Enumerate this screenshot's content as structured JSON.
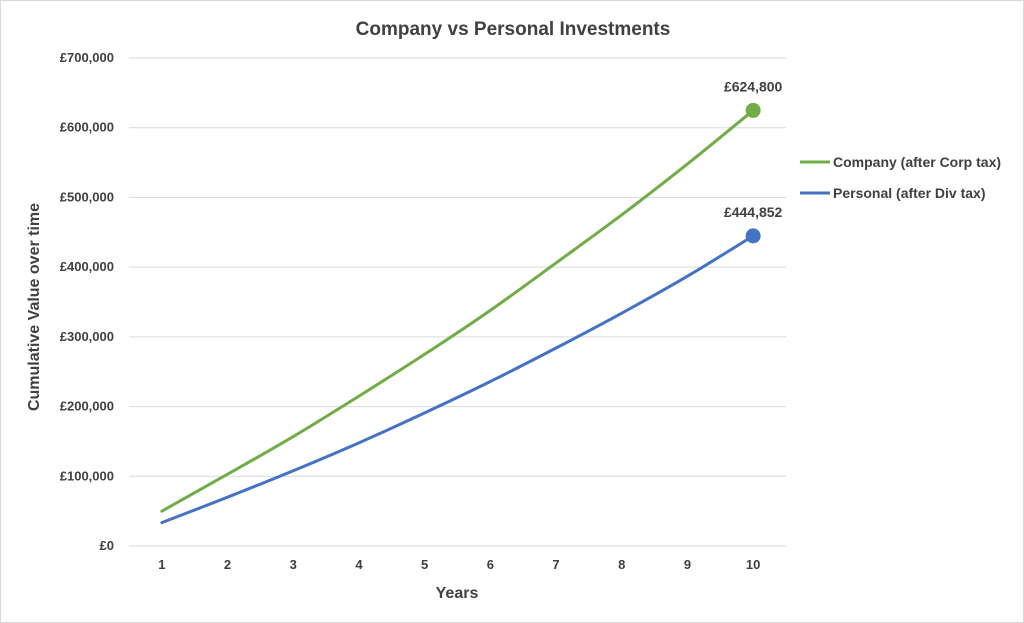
{
  "chart_data": {
    "type": "line",
    "title": "Company vs Personal Investments",
    "xlabel": "Years",
    "ylabel": "Cumulative Value over time",
    "categories": [
      "1",
      "2",
      "3",
      "4",
      "5",
      "6",
      "7",
      "8",
      "9",
      "10"
    ],
    "ylim": [
      0,
      700000
    ],
    "yticks": [
      0,
      100000,
      200000,
      300000,
      400000,
      500000,
      600000,
      700000
    ],
    "ytick_labels": [
      "£0",
      "£100,000",
      "£200,000",
      "£300,000",
      "£400,000",
      "£500,000",
      "£600,000",
      "£700,000"
    ],
    "grid": true,
    "legend_position": "right",
    "series": [
      {
        "name": "Company (after Corp tax)",
        "color": "#70ad47",
        "values": [
          50000,
          103000,
          157000,
          215000,
          275000,
          338000,
          406000,
          475000,
          548000,
          624800
        ],
        "end_label": "£624,800"
      },
      {
        "name": "Personal (after Div tax)",
        "color": "#4472c4",
        "values": [
          33500,
          70000,
          108000,
          148000,
          191000,
          236000,
          284000,
          334000,
          387000,
          444852
        ],
        "end_label": "£444,852"
      }
    ]
  }
}
